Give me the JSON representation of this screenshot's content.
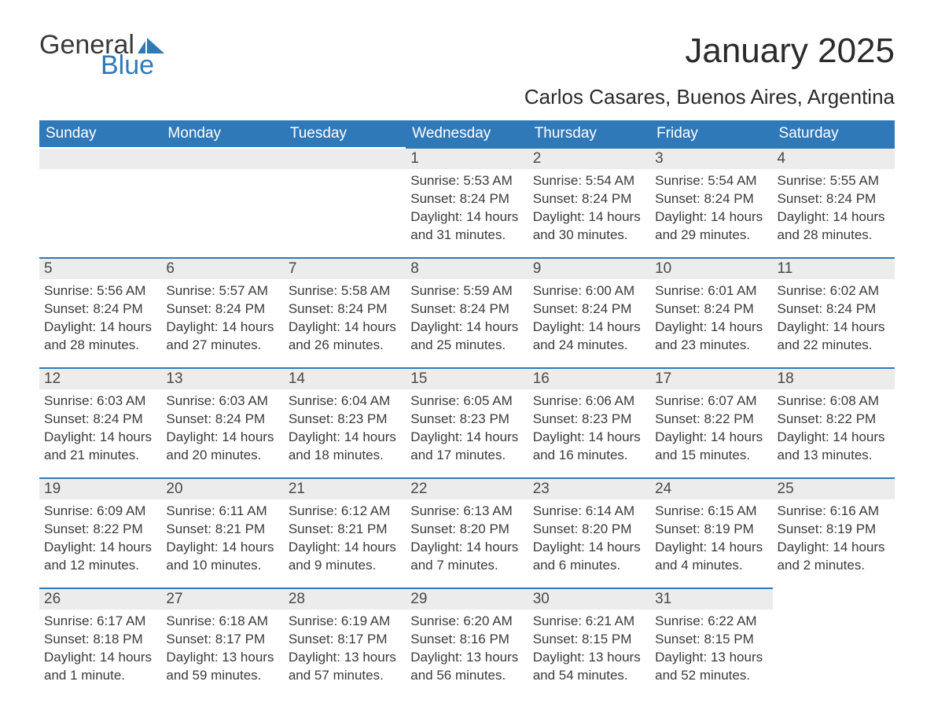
{
  "logo": {
    "word1": "General",
    "word2": "Blue",
    "accent_color": "#3079b8"
  },
  "title": "January 2025",
  "location": "Carlos Casares, Buenos Aires, Argentina",
  "calendar": {
    "header_bg": "#3079b8",
    "header_fg": "#ffffff",
    "row_accent": "#3079b8",
    "daynum_bg": "#ececec",
    "text_color": "#3a3a3a",
    "body_fontsize": 17,
    "columns": [
      "Sunday",
      "Monday",
      "Tuesday",
      "Wednesday",
      "Thursday",
      "Friday",
      "Saturday"
    ],
    "weeks": [
      [
        null,
        null,
        null,
        {
          "n": "1",
          "sr": "Sunrise: 5:53 AM",
          "ss": "Sunset: 8:24 PM",
          "d1": "Daylight: 14 hours",
          "d2": "and 31 minutes."
        },
        {
          "n": "2",
          "sr": "Sunrise: 5:54 AM",
          "ss": "Sunset: 8:24 PM",
          "d1": "Daylight: 14 hours",
          "d2": "and 30 minutes."
        },
        {
          "n": "3",
          "sr": "Sunrise: 5:54 AM",
          "ss": "Sunset: 8:24 PM",
          "d1": "Daylight: 14 hours",
          "d2": "and 29 minutes."
        },
        {
          "n": "4",
          "sr": "Sunrise: 5:55 AM",
          "ss": "Sunset: 8:24 PM",
          "d1": "Daylight: 14 hours",
          "d2": "and 28 minutes."
        }
      ],
      [
        {
          "n": "5",
          "sr": "Sunrise: 5:56 AM",
          "ss": "Sunset: 8:24 PM",
          "d1": "Daylight: 14 hours",
          "d2": "and 28 minutes."
        },
        {
          "n": "6",
          "sr": "Sunrise: 5:57 AM",
          "ss": "Sunset: 8:24 PM",
          "d1": "Daylight: 14 hours",
          "d2": "and 27 minutes."
        },
        {
          "n": "7",
          "sr": "Sunrise: 5:58 AM",
          "ss": "Sunset: 8:24 PM",
          "d1": "Daylight: 14 hours",
          "d2": "and 26 minutes."
        },
        {
          "n": "8",
          "sr": "Sunrise: 5:59 AM",
          "ss": "Sunset: 8:24 PM",
          "d1": "Daylight: 14 hours",
          "d2": "and 25 minutes."
        },
        {
          "n": "9",
          "sr": "Sunrise: 6:00 AM",
          "ss": "Sunset: 8:24 PM",
          "d1": "Daylight: 14 hours",
          "d2": "and 24 minutes."
        },
        {
          "n": "10",
          "sr": "Sunrise: 6:01 AM",
          "ss": "Sunset: 8:24 PM",
          "d1": "Daylight: 14 hours",
          "d2": "and 23 minutes."
        },
        {
          "n": "11",
          "sr": "Sunrise: 6:02 AM",
          "ss": "Sunset: 8:24 PM",
          "d1": "Daylight: 14 hours",
          "d2": "and 22 minutes."
        }
      ],
      [
        {
          "n": "12",
          "sr": "Sunrise: 6:03 AM",
          "ss": "Sunset: 8:24 PM",
          "d1": "Daylight: 14 hours",
          "d2": "and 21 minutes."
        },
        {
          "n": "13",
          "sr": "Sunrise: 6:03 AM",
          "ss": "Sunset: 8:24 PM",
          "d1": "Daylight: 14 hours",
          "d2": "and 20 minutes."
        },
        {
          "n": "14",
          "sr": "Sunrise: 6:04 AM",
          "ss": "Sunset: 8:23 PM",
          "d1": "Daylight: 14 hours",
          "d2": "and 18 minutes."
        },
        {
          "n": "15",
          "sr": "Sunrise: 6:05 AM",
          "ss": "Sunset: 8:23 PM",
          "d1": "Daylight: 14 hours",
          "d2": "and 17 minutes."
        },
        {
          "n": "16",
          "sr": "Sunrise: 6:06 AM",
          "ss": "Sunset: 8:23 PM",
          "d1": "Daylight: 14 hours",
          "d2": "and 16 minutes."
        },
        {
          "n": "17",
          "sr": "Sunrise: 6:07 AM",
          "ss": "Sunset: 8:22 PM",
          "d1": "Daylight: 14 hours",
          "d2": "and 15 minutes."
        },
        {
          "n": "18",
          "sr": "Sunrise: 6:08 AM",
          "ss": "Sunset: 8:22 PM",
          "d1": "Daylight: 14 hours",
          "d2": "and 13 minutes."
        }
      ],
      [
        {
          "n": "19",
          "sr": "Sunrise: 6:09 AM",
          "ss": "Sunset: 8:22 PM",
          "d1": "Daylight: 14 hours",
          "d2": "and 12 minutes."
        },
        {
          "n": "20",
          "sr": "Sunrise: 6:11 AM",
          "ss": "Sunset: 8:21 PM",
          "d1": "Daylight: 14 hours",
          "d2": "and 10 minutes."
        },
        {
          "n": "21",
          "sr": "Sunrise: 6:12 AM",
          "ss": "Sunset: 8:21 PM",
          "d1": "Daylight: 14 hours",
          "d2": "and 9 minutes."
        },
        {
          "n": "22",
          "sr": "Sunrise: 6:13 AM",
          "ss": "Sunset: 8:20 PM",
          "d1": "Daylight: 14 hours",
          "d2": "and 7 minutes."
        },
        {
          "n": "23",
          "sr": "Sunrise: 6:14 AM",
          "ss": "Sunset: 8:20 PM",
          "d1": "Daylight: 14 hours",
          "d2": "and 6 minutes."
        },
        {
          "n": "24",
          "sr": "Sunrise: 6:15 AM",
          "ss": "Sunset: 8:19 PM",
          "d1": "Daylight: 14 hours",
          "d2": "and 4 minutes."
        },
        {
          "n": "25",
          "sr": "Sunrise: 6:16 AM",
          "ss": "Sunset: 8:19 PM",
          "d1": "Daylight: 14 hours",
          "d2": "and 2 minutes."
        }
      ],
      [
        {
          "n": "26",
          "sr": "Sunrise: 6:17 AM",
          "ss": "Sunset: 8:18 PM",
          "d1": "Daylight: 14 hours",
          "d2": "and 1 minute."
        },
        {
          "n": "27",
          "sr": "Sunrise: 6:18 AM",
          "ss": "Sunset: 8:17 PM",
          "d1": "Daylight: 13 hours",
          "d2": "and 59 minutes."
        },
        {
          "n": "28",
          "sr": "Sunrise: 6:19 AM",
          "ss": "Sunset: 8:17 PM",
          "d1": "Daylight: 13 hours",
          "d2": "and 57 minutes."
        },
        {
          "n": "29",
          "sr": "Sunrise: 6:20 AM",
          "ss": "Sunset: 8:16 PM",
          "d1": "Daylight: 13 hours",
          "d2": "and 56 minutes."
        },
        {
          "n": "30",
          "sr": "Sunrise: 6:21 AM",
          "ss": "Sunset: 8:15 PM",
          "d1": "Daylight: 13 hours",
          "d2": "and 54 minutes."
        },
        {
          "n": "31",
          "sr": "Sunrise: 6:22 AM",
          "ss": "Sunset: 8:15 PM",
          "d1": "Daylight: 13 hours",
          "d2": "and 52 minutes."
        },
        null
      ]
    ]
  }
}
